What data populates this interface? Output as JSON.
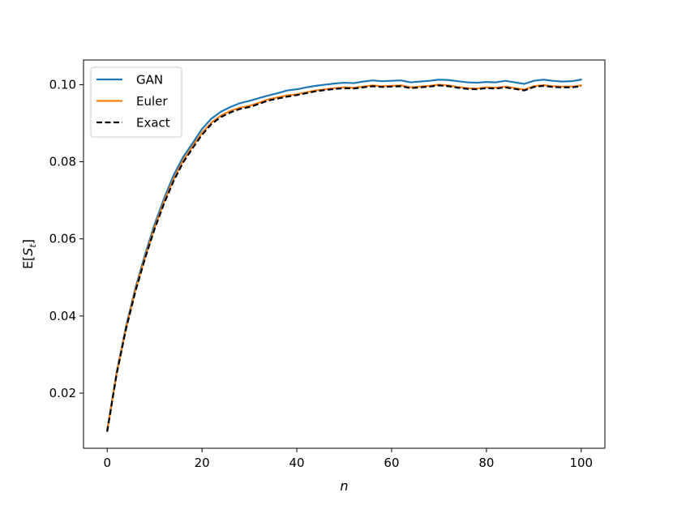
{
  "chart_data": {
    "type": "line",
    "xlabel": "n",
    "ylabel_prefix": "E[",
    "ylabel_symbol": "S",
    "ylabel_subscript": "t",
    "ylabel_suffix": "]",
    "xlim": [
      -5,
      105
    ],
    "ylim": [
      0.0057,
      0.1064
    ],
    "x_ticks": [
      0,
      20,
      40,
      60,
      80,
      100
    ],
    "x_tick_labels": [
      "0",
      "20",
      "40",
      "60",
      "80",
      "100"
    ],
    "y_ticks": [
      0.02,
      0.04,
      0.06,
      0.08,
      0.1
    ],
    "y_tick_labels": [
      "0.02",
      "0.04",
      "0.06",
      "0.08",
      "0.10"
    ],
    "legend_position": "top-left",
    "grid": false,
    "series": [
      {
        "name": "GAN",
        "color": "#1f77b4",
        "style": "solid",
        "points": [
          [
            0,
            0.0105
          ],
          [
            2,
            0.0255
          ],
          [
            4,
            0.0375
          ],
          [
            6,
            0.0475
          ],
          [
            8,
            0.056
          ],
          [
            10,
            0.0638
          ],
          [
            12,
            0.0705
          ],
          [
            14,
            0.0765
          ],
          [
            16,
            0.0812
          ],
          [
            18,
            0.0848
          ],
          [
            20,
            0.0885
          ],
          [
            22,
            0.0912
          ],
          [
            24,
            0.093
          ],
          [
            26,
            0.0942
          ],
          [
            28,
            0.0952
          ],
          [
            30,
            0.0958
          ],
          [
            32,
            0.0965
          ],
          [
            34,
            0.0972
          ],
          [
            36,
            0.0978
          ],
          [
            38,
            0.0985
          ],
          [
            40,
            0.0988
          ],
          [
            42,
            0.0993
          ],
          [
            44,
            0.0997
          ],
          [
            46,
            0.1
          ],
          [
            48,
            0.1003
          ],
          [
            50,
            0.1005
          ],
          [
            52,
            0.1004
          ],
          [
            54,
            0.1008
          ],
          [
            56,
            0.1011
          ],
          [
            58,
            0.1009
          ],
          [
            60,
            0.101
          ],
          [
            62,
            0.1011
          ],
          [
            64,
            0.1006
          ],
          [
            66,
            0.1008
          ],
          [
            68,
            0.101
          ],
          [
            70,
            0.1013
          ],
          [
            72,
            0.1012
          ],
          [
            74,
            0.1009
          ],
          [
            76,
            0.1006
          ],
          [
            78,
            0.1005
          ],
          [
            80,
            0.1007
          ],
          [
            82,
            0.1006
          ],
          [
            84,
            0.101
          ],
          [
            86,
            0.1006
          ],
          [
            88,
            0.1002
          ],
          [
            90,
            0.101
          ],
          [
            92,
            0.1013
          ],
          [
            94,
            0.101
          ],
          [
            96,
            0.1008
          ],
          [
            98,
            0.1009
          ],
          [
            100,
            0.1013
          ]
        ]
      },
      {
        "name": "Euler",
        "color": "#ff7f0e",
        "style": "solid",
        "points": [
          [
            0,
            0.0102
          ],
          [
            2,
            0.0252
          ],
          [
            4,
            0.037
          ],
          [
            6,
            0.047
          ],
          [
            8,
            0.0553
          ],
          [
            10,
            0.063
          ],
          [
            12,
            0.0697
          ],
          [
            14,
            0.0755
          ],
          [
            16,
            0.0803
          ],
          [
            18,
            0.084
          ],
          [
            20,
            0.0875
          ],
          [
            22,
            0.0902
          ],
          [
            24,
            0.092
          ],
          [
            26,
            0.0932
          ],
          [
            28,
            0.094
          ],
          [
            30,
            0.0945
          ],
          [
            32,
            0.0953
          ],
          [
            34,
            0.0962
          ],
          [
            36,
            0.0967
          ],
          [
            38,
            0.0972
          ],
          [
            40,
            0.0975
          ],
          [
            42,
            0.098
          ],
          [
            44,
            0.0985
          ],
          [
            46,
            0.0988
          ],
          [
            48,
            0.0991
          ],
          [
            50,
            0.0993
          ],
          [
            52,
            0.0992
          ],
          [
            54,
            0.0995
          ],
          [
            56,
            0.0998
          ],
          [
            58,
            0.0996
          ],
          [
            60,
            0.0997
          ],
          [
            62,
            0.0998
          ],
          [
            64,
            0.0993
          ],
          [
            66,
            0.0995
          ],
          [
            68,
            0.0997
          ],
          [
            70,
            0.1
          ],
          [
            72,
            0.0998
          ],
          [
            74,
            0.0994
          ],
          [
            76,
            0.0991
          ],
          [
            78,
            0.099
          ],
          [
            80,
            0.0993
          ],
          [
            82,
            0.0992
          ],
          [
            84,
            0.0995
          ],
          [
            86,
            0.0991
          ],
          [
            88,
            0.0987
          ],
          [
            90,
            0.0996
          ],
          [
            92,
            0.0999
          ],
          [
            94,
            0.0996
          ],
          [
            96,
            0.0995
          ],
          [
            98,
            0.0995
          ],
          [
            100,
            0.0998
          ]
        ]
      },
      {
        "name": "Exact",
        "color": "#000000",
        "style": "dashed",
        "points": [
          [
            0,
            0.01
          ],
          [
            2,
            0.025
          ],
          [
            4,
            0.0368
          ],
          [
            6,
            0.0466
          ],
          [
            8,
            0.055
          ],
          [
            10,
            0.0626
          ],
          [
            12,
            0.0692
          ],
          [
            14,
            0.075
          ],
          [
            16,
            0.0798
          ],
          [
            18,
            0.0835
          ],
          [
            20,
            0.087
          ],
          [
            22,
            0.0898
          ],
          [
            24,
            0.0916
          ],
          [
            26,
            0.0928
          ],
          [
            28,
            0.0937
          ],
          [
            30,
            0.0942
          ],
          [
            32,
            0.095
          ],
          [
            34,
            0.0959
          ],
          [
            36,
            0.0964
          ],
          [
            38,
            0.0969
          ],
          [
            40,
            0.0973
          ],
          [
            42,
            0.0978
          ],
          [
            44,
            0.0983
          ],
          [
            46,
            0.0986
          ],
          [
            48,
            0.0989
          ],
          [
            50,
            0.0991
          ],
          [
            52,
            0.099
          ],
          [
            54,
            0.0993
          ],
          [
            56,
            0.0996
          ],
          [
            58,
            0.0994
          ],
          [
            60,
            0.0995
          ],
          [
            62,
            0.0996
          ],
          [
            64,
            0.0991
          ],
          [
            66,
            0.0993
          ],
          [
            68,
            0.0995
          ],
          [
            70,
            0.0998
          ],
          [
            72,
            0.0996
          ],
          [
            74,
            0.0992
          ],
          [
            76,
            0.0989
          ],
          [
            78,
            0.0988
          ],
          [
            80,
            0.0991
          ],
          [
            82,
            0.099
          ],
          [
            84,
            0.0993
          ],
          [
            86,
            0.0989
          ],
          [
            88,
            0.0985
          ],
          [
            90,
            0.0994
          ],
          [
            92,
            0.0997
          ],
          [
            94,
            0.0994
          ],
          [
            96,
            0.0993
          ],
          [
            98,
            0.0993
          ],
          [
            100,
            0.0996
          ]
        ]
      }
    ]
  }
}
